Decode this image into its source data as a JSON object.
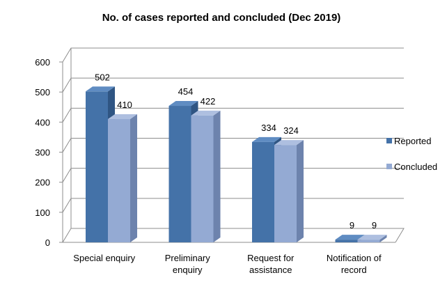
{
  "chart_data": {
    "type": "bar",
    "title": "No. of cases reported and concluded (Dec 2019)",
    "categories": [
      [
        "Special enquiry"
      ],
      [
        "Preliminary",
        "enquiry"
      ],
      [
        "Request for",
        "assistance"
      ],
      [
        "Notification of",
        "record"
      ]
    ],
    "series": [
      {
        "name": "Reported",
        "values": [
          502,
          454,
          334,
          9
        ],
        "color": "#4472a8",
        "top": "#5f8cc2",
        "side": "#2f5583"
      },
      {
        "name": "Concluded",
        "values": [
          410,
          422,
          324,
          9
        ],
        "color": "#94aad3",
        "top": "#aebfe0",
        "side": "#6d83ad"
      }
    ],
    "ylim": [
      0,
      600
    ],
    "yticks": [
      "0",
      "100",
      "200",
      "300",
      "400",
      "500",
      "600"
    ],
    "grid": true,
    "legend_position": "right"
  }
}
